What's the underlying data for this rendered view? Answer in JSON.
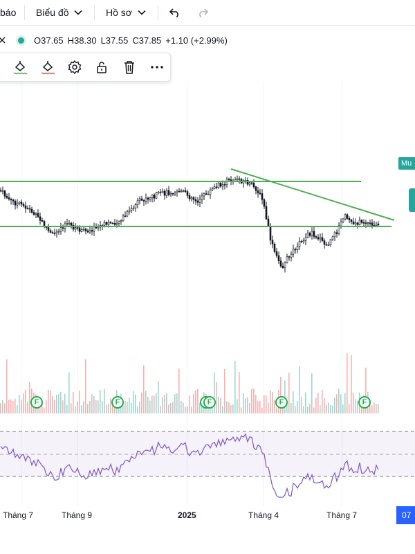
{
  "topbar": {
    "item_partial": "báo",
    "chart_menu": "Biểu đồ",
    "profile_menu": "Hồ sơ"
  },
  "legend": {
    "open": "O37.65",
    "high": "H38.30",
    "low": "L37.55",
    "close": "C37.85",
    "change": "+1.10 (+2.99%)"
  },
  "tools": [
    "paint-bucket-icon",
    "paint-bucket-red-icon",
    "gear-icon",
    "unlock-icon",
    "trash-icon",
    "more-icon"
  ],
  "xaxis": {
    "labels": [
      "Tháng 7",
      "Tháng 9",
      "2025",
      "Tháng 4",
      "Tháng 7"
    ],
    "current": "07"
  },
  "price_tag": "Mu",
  "event_badge": "F",
  "colors": {
    "up": "#26a69a",
    "down": "#ef5350",
    "line": "#4caf50",
    "rsi": "#7e57c2",
    "accent": "#2962ff"
  }
}
